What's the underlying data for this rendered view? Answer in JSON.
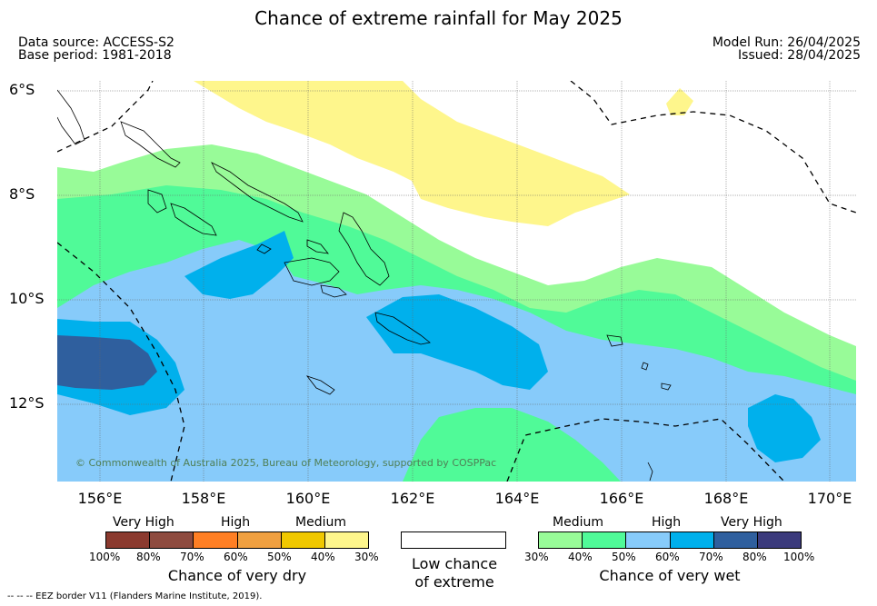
{
  "title": "Chance of extreme rainfall for May 2025",
  "data_source": "Data source: ACCESS-S2",
  "base_period": "Base period: 1981-2018",
  "model_run": "Model Run: 26/04/2025",
  "issued": "Issued: 28/04/2025",
  "lat_labels": [
    "6°S",
    "8°S",
    "10°S",
    "12°S"
  ],
  "lon_labels": [
    "156°E",
    "158°E",
    "160°E",
    "162°E",
    "164°E",
    "166°E",
    "168°E",
    "170°E"
  ],
  "copyright": "© Commonwealth of Australia 2025, Bureau of Meteorology, supported by COSPPac",
  "legend_dry": {
    "categories": [
      "Very High",
      "High",
      "Medium"
    ],
    "ticks": [
      "100%",
      "80%",
      "70%",
      "60%",
      "50%",
      "40%",
      "30%"
    ],
    "label": "Chance of very dry",
    "colors": [
      "#8b3a2f",
      "#8e4b3f",
      "#ff7f24",
      "#f0a040",
      "#f0c800",
      "#fef68c"
    ]
  },
  "legend_low": {
    "label_line1": "Low chance",
    "label_line2": "of extreme"
  },
  "legend_wet": {
    "categories": [
      "Medium",
      "High",
      "Very High"
    ],
    "ticks": [
      "30%",
      "40%",
      "50%",
      "60%",
      "70%",
      "80%",
      "100%"
    ],
    "label": "Chance of very wet",
    "colors": [
      "#98fb98",
      "#50fa98",
      "#87cbfa",
      "#00b0ec",
      "#2f5f9e",
      "#3b3a7c"
    ]
  },
  "footer": "-- -- -- EEZ border V11 (Flanders Marine Institute, 2019)."
}
